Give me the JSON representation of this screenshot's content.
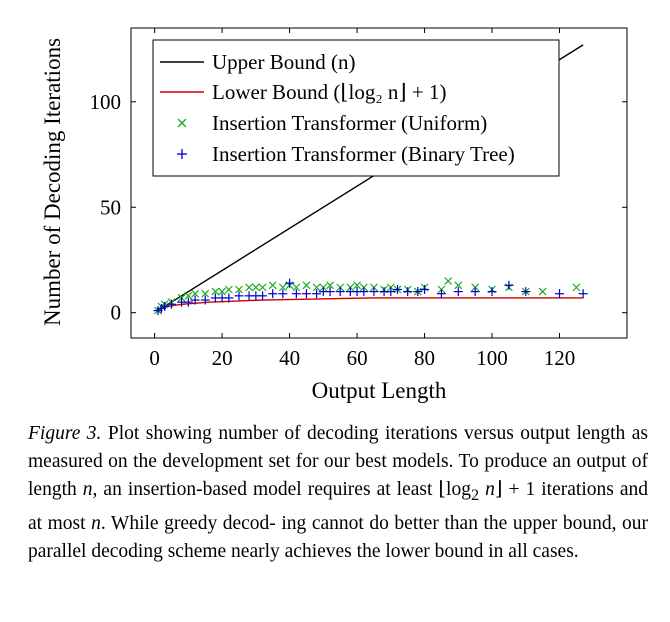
{
  "chart_data": {
    "type": "scatter",
    "xlabel": "Output Length",
    "ylabel": "Number of Decoding Iterations",
    "xlim": [
      -7,
      140
    ],
    "ylim": [
      -12,
      135
    ],
    "xticks": [
      "0",
      "20",
      "40",
      "60",
      "80",
      "100",
      "120"
    ],
    "yticks": [
      "0",
      "50",
      "100"
    ],
    "grid": false,
    "legend_position": "top-left",
    "series": [
      {
        "name": "Upper Bound (n)",
        "kind": "line",
        "color": "#000000",
        "x": [
          1,
          127
        ],
        "y": [
          1,
          127
        ]
      },
      {
        "name": "Lower Bound (⌊log₂ n⌋ + 1)",
        "kind": "line",
        "color": "#cc0000",
        "x": [
          1,
          2,
          4,
          8,
          16,
          32,
          64,
          127
        ],
        "y": [
          1,
          2,
          3,
          4,
          5,
          6,
          7,
          7
        ]
      },
      {
        "name": "Insertion Transformer (Uniform)",
        "kind": "scatter",
        "marker": "x",
        "color": "#1aaa1a",
        "x": [
          1,
          2,
          3,
          5,
          8,
          10,
          12,
          15,
          18,
          20,
          22,
          25,
          28,
          30,
          32,
          35,
          38,
          40,
          42,
          45,
          48,
          50,
          52,
          55,
          58,
          60,
          62,
          65,
          68,
          70,
          72,
          75,
          78,
          80,
          85,
          87,
          90,
          95,
          100,
          105,
          110,
          115,
          125
        ],
        "y": [
          1,
          3,
          4,
          5,
          7,
          8,
          9,
          9,
          10,
          10,
          11,
          11,
          12,
          12,
          12,
          13,
          12,
          13,
          12,
          13,
          12,
          12,
          13,
          12,
          12,
          13,
          12,
          12,
          11,
          12,
          11,
          11,
          10,
          12,
          11,
          15,
          13,
          12,
          11,
          12,
          10,
          10,
          12
        ]
      },
      {
        "name": "Insertion Transformer (Binary Tree)",
        "kind": "scatter",
        "marker": "+",
        "color": "#0000cc",
        "x": [
          1,
          2,
          3,
          5,
          8,
          10,
          12,
          15,
          18,
          20,
          22,
          25,
          28,
          30,
          32,
          35,
          38,
          40,
          42,
          45,
          48,
          50,
          52,
          55,
          58,
          60,
          62,
          65,
          68,
          70,
          72,
          75,
          78,
          80,
          85,
          90,
          95,
          100,
          105,
          110,
          120,
          127
        ],
        "y": [
          1,
          2,
          3,
          4,
          5,
          5,
          6,
          6,
          7,
          7,
          7,
          8,
          8,
          8,
          8,
          9,
          9,
          14,
          9,
          9,
          9,
          10,
          10,
          10,
          10,
          10,
          10,
          10,
          10,
          10,
          11,
          10,
          10,
          11,
          9,
          10,
          10,
          10,
          13,
          10,
          9,
          9
        ]
      }
    ]
  },
  "caption": {
    "label": "Figure 3.",
    "line1": " Plot showing number of decoding iterations versus output",
    "line2": "length as measured on the development set for our best models. To",
    "line3a": "produce an output of length ",
    "var_n": "n",
    "line3b": ", an insertion-based model requires",
    "line4a": "at least ⌊log",
    "line4sub": "2",
    "line4b": " ",
    "line4c": "⌋ + 1 iterations and at most ",
    "line4d": ". While greedy decod-",
    "line5": "ing cannot do better than the upper bound, our parallel decoding",
    "line6": "scheme nearly achieves the lower bound in all cases."
  }
}
